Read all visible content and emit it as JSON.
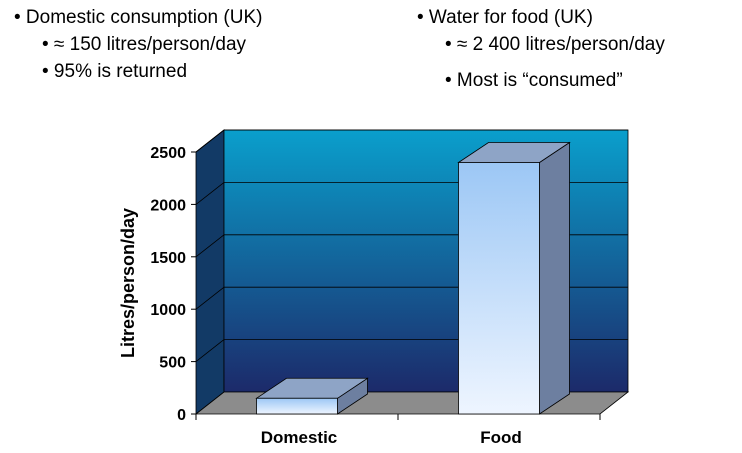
{
  "notes": {
    "left": {
      "heading": "• Domestic consumption (UK)",
      "points": [
        "• ≈ 150 litres/person/day",
        "• 95% is returned"
      ]
    },
    "right": {
      "heading": "• Water for food (UK)",
      "points": [
        "• ≈ 2 400 litres/person/day",
        "• Most is “consumed”"
      ]
    }
  },
  "chart_data": {
    "type": "bar",
    "categories": [
      "Domestic",
      "Food"
    ],
    "values": [
      150,
      2400
    ],
    "title": "",
    "xlabel": "",
    "ylabel": "Litres/person/day",
    "ylim": [
      0,
      2500
    ],
    "yticks": [
      0,
      500,
      1000,
      1500,
      2000,
      2500
    ],
    "grid": true,
    "legend": "none",
    "colors": {
      "wall_top": "#0a9fcc",
      "wall_bottom": "#1c2a6a",
      "side_wall": "#123a66",
      "floor": "#8c8c8c",
      "bar_front_top": "#9cc7f5",
      "bar_front_bottom": "#eef5ff",
      "bar_side": "#6d7fa0",
      "bar_top": "#8ea4c6"
    }
  }
}
